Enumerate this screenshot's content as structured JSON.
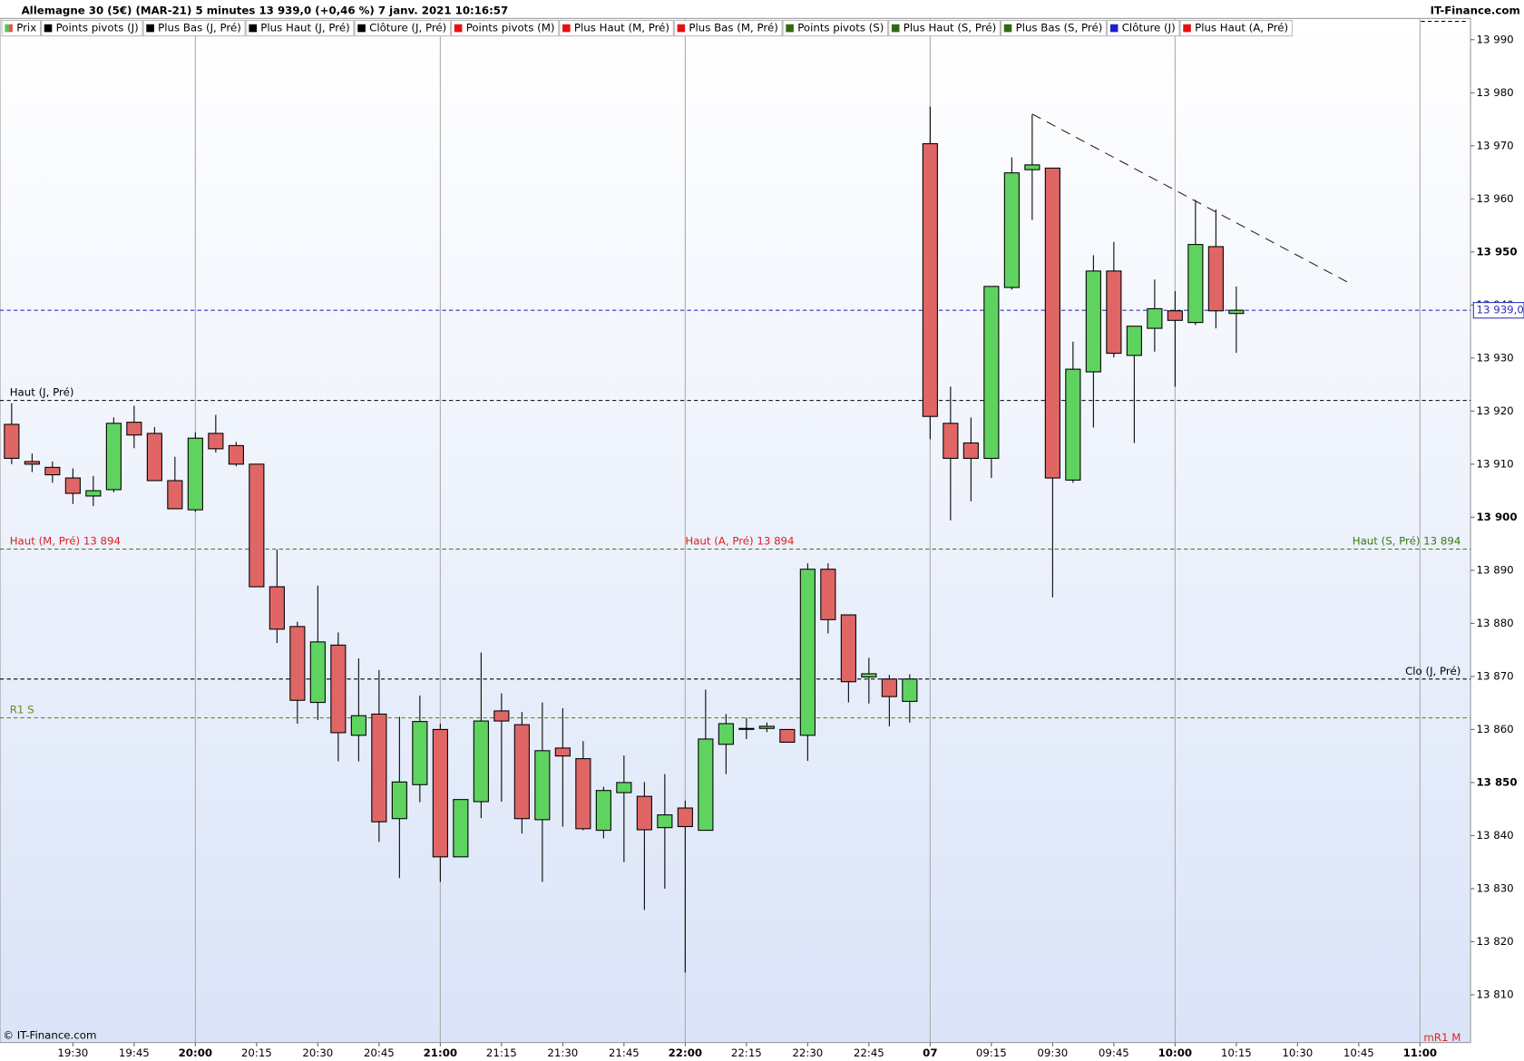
{
  "chart_data": {
    "type": "candlestick",
    "title": "Allemagne 30 (5€) (MAR-21) 5 minutes 13 939,0 (+0,46 %) 7 janv. 2021 10:16:57",
    "source": "IT-Finance.com",
    "copyright": "© IT-Finance.com",
    "footer_right": "mR1 M",
    "legend": [
      {
        "name": "Prix",
        "color": [
          "#4cc94c",
          "#e05555"
        ]
      },
      {
        "name": "Points pivots (J)",
        "color": "#000000"
      },
      {
        "name": "Plus Bas (J, Pré)",
        "color": "#000000"
      },
      {
        "name": "Plus Haut (J, Pré)",
        "color": "#000000"
      },
      {
        "name": "Clôture (J, Pré)",
        "color": "#000000"
      },
      {
        "name": "Points pivots (M)",
        "color": "#e81010"
      },
      {
        "name": "Plus Haut (M, Pré)",
        "color": "#e81010"
      },
      {
        "name": "Plus Bas (M, Pré)",
        "color": "#e81010"
      },
      {
        "name": "Points pivots (S)",
        "color": "#2f6a10"
      },
      {
        "name": "Plus Haut (S, Pré)",
        "color": "#2f6a10"
      },
      {
        "name": "Plus Bas (S, Pré)",
        "color": "#2f6a10"
      },
      {
        "name": "Clôture (J)",
        "color": "#2020d0"
      },
      {
        "name": "Plus Haut (A, Pré)",
        "color": "#e81010"
      }
    ],
    "categories": [
      null,
      null,
      null,
      "19:30",
      null,
      null,
      "19:45",
      null,
      null,
      "20:00",
      null,
      null,
      "20:15",
      null,
      null,
      "20:30",
      null,
      null,
      "20:45",
      null,
      null,
      "21:00",
      null,
      null,
      "21:15",
      null,
      null,
      "21:30",
      null,
      null,
      "21:45",
      null,
      null,
      "22:00",
      null,
      null,
      "22:15",
      null,
      null,
      "22:30",
      null,
      null,
      "22:45",
      null,
      null,
      "07",
      null,
      null,
      "09:15",
      null,
      null,
      "09:30",
      null,
      null,
      "09:45",
      null,
      null,
      "10:00",
      null,
      null,
      "10:15",
      null,
      null,
      "10:30",
      null,
      null,
      "10:45",
      null,
      null,
      "11:00"
    ],
    "open": [
      13917.5,
      13910.5,
      13909.4,
      13907.4,
      13904,
      13905.2,
      13917.9,
      13915.8,
      13906.9,
      13901.4,
      13915.8,
      13913.5,
      13910,
      13886.9,
      13879.4,
      13865.1,
      13875.9,
      13858.9,
      13862.9,
      13843.2,
      13849.6,
      13860,
      13836,
      13846.4,
      13863.5,
      13860.9,
      13843,
      13856.5,
      13854.5,
      13841,
      13848.1,
      13847.4,
      13841.5,
      13845.2,
      13841,
      13857.2,
      13860.2,
      13860.2,
      13860,
      13858.9,
      13890.2,
      13881.6,
      13869.9,
      13869.5,
      13865.3,
      13970.4,
      13917.7,
      13914,
      13911.1,
      13943.3,
      13965.5,
      13965.8,
      13907,
      13927.4,
      13946.4,
      13930.5,
      13935.6,
      13938.9,
      13936.7,
      13951,
      13938.4,
      null,
      null,
      null,
      null,
      null,
      null,
      null,
      null,
      null
    ],
    "high": [
      13921.5,
      13912,
      13910.5,
      13909.2,
      13907.8,
      13918.8,
      13921,
      13917,
      13911.4,
      13916,
      13919.3,
      13914.2,
      13910,
      13893.9,
      13880.3,
      13887.1,
      13878.3,
      13873.4,
      13871.2,
      13862.4,
      13866.4,
      13861.1,
      13846.8,
      13874.5,
      13866.8,
      13863.3,
      13865.1,
      13864,
      13857.8,
      13849.2,
      13855.1,
      13850.1,
      13851.6,
      13846.6,
      13867.5,
      13862.9,
      13862.2,
      13861.3,
      13860,
      13891.3,
      13891.3,
      13881.6,
      13873.5,
      13870.3,
      13870.4,
      13977.4,
      13924.6,
      13918.8,
      13943.5,
      13967.8,
      13975.9,
      13965.8,
      13933.1,
      13949.4,
      13951.9,
      13936,
      13944.8,
      13942.6,
      13959.8,
      13958,
      13943.5,
      null,
      null,
      null,
      null,
      null,
      null,
      null,
      null,
      null
    ],
    "low": [
      13910,
      13908.5,
      13906.5,
      13902.5,
      13902.1,
      13904.7,
      13913,
      13906.9,
      13901.6,
      13901,
      13912.2,
      13909.6,
      13886.9,
      13876.3,
      13861.1,
      13861.8,
      13854,
      13854,
      13838.8,
      13832,
      13846.3,
      13831.3,
      13836,
      13843.3,
      13846.4,
      13840.4,
      13831.3,
      13841.7,
      13841,
      13839.5,
      13835,
      13826,
      13830,
      13814.2,
      13841,
      13851.6,
      13858.2,
      13859.5,
      13857.6,
      13854.1,
      13878.1,
      13865.1,
      13864.9,
      13860.6,
      13861.3,
      13914.7,
      13899.4,
      13903,
      13907.4,
      13942.9,
      13956,
      13884.9,
      13906.5,
      13916.9,
      13930.1,
      13914,
      13931.2,
      13924.6,
      13936.2,
      13935.6,
      13931,
      null,
      null,
      null,
      null,
      null,
      null,
      null,
      null,
      null
    ],
    "close": [
      13911.1,
      13910,
      13908,
      13904.5,
      13905,
      13917.7,
      13915.5,
      13906.9,
      13901.6,
      13914.9,
      13912.9,
      13910,
      13886.9,
      13878.9,
      13865.5,
      13876.5,
      13859.4,
      13862.6,
      13842.6,
      13850.1,
      13861.5,
      13836,
      13846.8,
      13861.6,
      13861.6,
      13843.2,
      13856,
      13855,
      13841.3,
      13848.5,
      13850,
      13841.1,
      13843.9,
      13841.7,
      13858.2,
      13861.1,
      13860.2,
      13860.6,
      13857.6,
      13890.2,
      13880.7,
      13869,
      13870.5,
      13866.2,
      13869.5,
      13919,
      13911.1,
      13911.1,
      13943.5,
      13964.9,
      13966.4,
      13907.4,
      13927.9,
      13946.4,
      13930.9,
      13936,
      13939.3,
      13937.1,
      13951.4,
      13938.9,
      13939,
      null,
      null,
      null,
      null,
      null,
      null,
      null,
      null,
      null
    ],
    "up_color": "#5fd35f",
    "down_color": "#e06666",
    "ylim": [
      13801,
      13994
    ],
    "yticks": [
      {
        "value": 13810,
        "label": "13 810"
      },
      {
        "value": 13820,
        "label": "13 820"
      },
      {
        "value": 13830,
        "label": "13 830"
      },
      {
        "value": 13840,
        "label": "13 840"
      },
      {
        "value": 13850,
        "label": "13 850"
      },
      {
        "value": 13860,
        "label": "13 860"
      },
      {
        "value": 13870,
        "label": "13 870"
      },
      {
        "value": 13880,
        "label": "13 880"
      },
      {
        "value": 13890,
        "label": "13 890"
      },
      {
        "value": 13900,
        "label": "13 900"
      },
      {
        "value": 13910,
        "label": "13 910"
      },
      {
        "value": 13920,
        "label": "13 920"
      },
      {
        "value": 13930,
        "label": "13 930"
      },
      {
        "value": 13940,
        "label": "13 940"
      },
      {
        "value": 13950,
        "label": "13 950"
      },
      {
        "value": 13960,
        "label": "13 960"
      },
      {
        "value": 13970,
        "label": "13 970"
      },
      {
        "value": 13980,
        "label": "13 980"
      },
      {
        "value": 13990,
        "label": "13 990"
      }
    ],
    "levels": [
      {
        "label": "Haut (J, Pré)",
        "value": 13922,
        "color": "#000000",
        "align": "left"
      },
      {
        "label": "Haut (M, Pré) 13 894",
        "value": 13894,
        "color": "#e02020",
        "align": "left"
      },
      {
        "label": "Haut (A, Pré) 13 894",
        "value": 13894,
        "color": "#e02020",
        "align": "center"
      },
      {
        "label": "Haut (S, Pré) 13 894",
        "value": 13894,
        "color": "#3a7a10",
        "align": "right"
      },
      {
        "label": "Clo (J, Pré)",
        "value": 13869.5,
        "color": "#000000",
        "align": "right"
      },
      {
        "label": "R1 S",
        "value": 13862.2,
        "color": "#6a8a20",
        "align": "left"
      }
    ],
    "last_price": {
      "value": 13939,
      "label": "13 939,0",
      "color": "#3030c0"
    },
    "trendline": {
      "x": [
        50,
        65.6
      ],
      "y": [
        13976,
        13944
      ]
    }
  }
}
